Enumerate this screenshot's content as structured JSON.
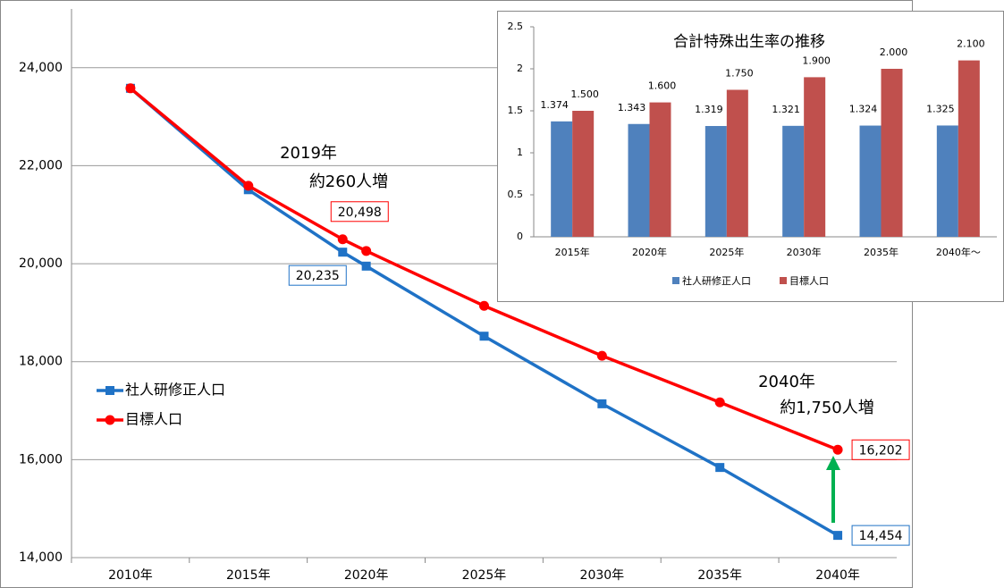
{
  "chart_data": [
    {
      "type": "line",
      "x": [
        2010,
        2015,
        2019,
        2020,
        2025,
        2030,
        2035,
        2040
      ],
      "xlim": [
        2007.5,
        2042.5
      ],
      "xticks": [
        {
          "value": 2010,
          "label": "2010年"
        },
        {
          "value": 2015,
          "label": "2015年"
        },
        {
          "value": 2020,
          "label": "2020年"
        },
        {
          "value": 2025,
          "label": "2025年"
        },
        {
          "value": 2030,
          "label": "2030年"
        },
        {
          "value": 2035,
          "label": "2035年"
        },
        {
          "value": 2040,
          "label": "2040年"
        }
      ],
      "ylim": [
        14000,
        25200
      ],
      "yticks": [
        {
          "value": 14000,
          "label": "14,000"
        },
        {
          "value": 16000,
          "label": "16,000"
        },
        {
          "value": 18000,
          "label": "18,000"
        },
        {
          "value": 20000,
          "label": "20,000"
        },
        {
          "value": 22000,
          "label": "22,000"
        },
        {
          "value": 24000,
          "label": "24,000"
        }
      ],
      "grid": true,
      "series": [
        {
          "name": "社人研修正人口",
          "color": "#1f72c6",
          "marker": "square",
          "values": [
            23580,
            21510,
            20235,
            19950,
            18520,
            17140,
            15840,
            14454
          ],
          "value_labels": [
            null,
            null,
            "20,235",
            null,
            null,
            null,
            null,
            "14,454"
          ]
        },
        {
          "name": "目標人口",
          "color": "#ff0000",
          "marker": "circle",
          "values": [
            23580,
            21590,
            20498,
            20260,
            19140,
            18120,
            17170,
            16202
          ],
          "value_labels": [
            null,
            null,
            "20,498",
            null,
            null,
            null,
            null,
            "16,202"
          ]
        }
      ],
      "annotations": [
        "2019年",
        "約260人増",
        "2040年",
        "約1,750人増"
      ]
    },
    {
      "type": "bar",
      "title": "合計特殊出生率の推移",
      "categories": [
        "2015年",
        "2020年",
        "2025年",
        "2030年",
        "2035年",
        "2040年～"
      ],
      "ylim": [
        0,
        2.5
      ],
      "yticks": [
        0,
        0.5,
        1,
        1.5,
        2,
        2.5
      ],
      "series": [
        {
          "name": "社人研修正人口",
          "color": "#4f81bd",
          "values": [
            1.374,
            1.343,
            1.319,
            1.321,
            1.324,
            1.325
          ]
        },
        {
          "name": "目標人口",
          "color": "#c0504d",
          "values": [
            1.5,
            1.6,
            1.75,
            1.9,
            2.0,
            2.1
          ],
          "value_labels": [
            "1.500",
            "1.600",
            "1.750",
            "1.900",
            "2.000",
            "2.100"
          ]
        }
      ]
    }
  ]
}
